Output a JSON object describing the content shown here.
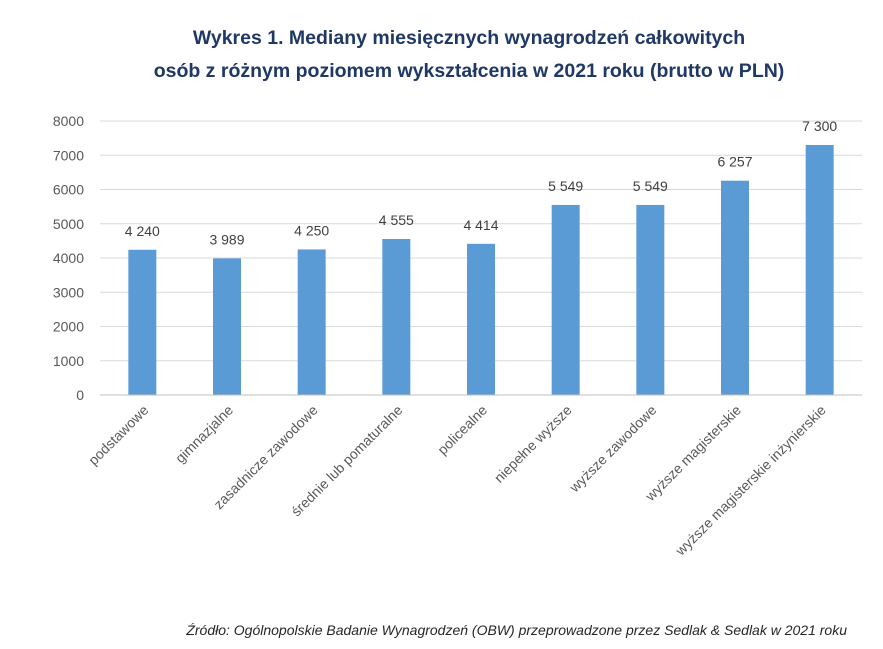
{
  "chart_data": {
    "type": "bar",
    "title_lines": [
      "Wykres 1. Mediany miesięcznych wynagrodzeń całkowitych",
      "osób z różnym poziomem wykształcenia w 2021 roku (brutto w PLN)"
    ],
    "categories": [
      "podstawowe",
      "gimnazjalne",
      "zasadnicze zawodowe",
      "średnie lub pomaturalne",
      "policealne",
      "niepełne wyższe",
      "wyższe zawodowe",
      "wyższe magisterskie",
      "wyższe magisterskie inżynierskie"
    ],
    "values": [
      4240,
      3989,
      4250,
      4555,
      4414,
      5549,
      5549,
      6257,
      7300
    ],
    "value_labels": [
      "4 240",
      "3 989",
      "4 250",
      "4 555",
      "4 414",
      "5 549",
      "5 549",
      "6 257",
      "7 300"
    ],
    "yticks": [
      0,
      1000,
      2000,
      3000,
      4000,
      5000,
      6000,
      7000,
      8000
    ],
    "ylim": [
      0,
      8000
    ],
    "grid": true,
    "xlabel": "",
    "ylabel": "",
    "bar_color": "#5b9bd5"
  },
  "source": "Źródło: Ogólnopolskie Badanie Wynagrodzeń (OBW) przeprowadzone przez Sedlak & Sedlak w 2021 roku"
}
